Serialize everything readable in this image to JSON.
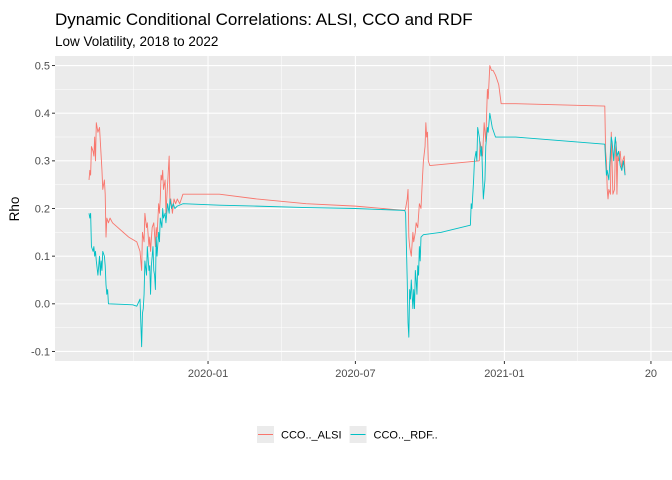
{
  "chart_data": {
    "type": "line",
    "title": "Dynamic Conditional Correlations: ALSI, CCO and RDF",
    "subtitle": "Low Volatility, 2018 to 2022",
    "xlabel": "",
    "ylabel": "Rho",
    "x_ticks": [
      "2020-01",
      "2020-07",
      "2021-01",
      "20"
    ],
    "y_ticks": [
      "-0.1",
      "0.0",
      "0.1",
      "0.2",
      "0.3",
      "0.4",
      "0.5"
    ],
    "ylim": [
      -0.12,
      0.52
    ],
    "legend_position": "bottom",
    "grid": true,
    "panel_background": "#ebebeb",
    "series": [
      {
        "name": "CCO.._ALSI",
        "color": "#f8766d",
        "points": [
          [
            "2019-08-07",
            0.26
          ],
          [
            "2019-08-08",
            0.28
          ],
          [
            "2019-08-09",
            0.27
          ],
          [
            "2019-08-10",
            0.33
          ],
          [
            "2019-08-12",
            0.32
          ],
          [
            "2019-08-13",
            0.31
          ],
          [
            "2019-08-14",
            0.35
          ],
          [
            "2019-08-15",
            0.3
          ],
          [
            "2019-08-16",
            0.38
          ],
          [
            "2019-08-18",
            0.36
          ],
          [
            "2019-08-20",
            0.37
          ],
          [
            "2019-08-21",
            0.34
          ],
          [
            "2019-08-23",
            0.28
          ],
          [
            "2019-08-24",
            0.24
          ],
          [
            "2019-08-26",
            0.26
          ],
          [
            "2019-08-27",
            0.23
          ],
          [
            "2019-08-28",
            0.14
          ],
          [
            "2019-08-29",
            0.18
          ],
          [
            "2019-08-31",
            0.17
          ],
          [
            "2019-09-02",
            0.18
          ],
          [
            "2019-09-05",
            0.17
          ],
          [
            "2019-09-25",
            0.14
          ],
          [
            "2019-10-05",
            0.13
          ],
          [
            "2019-10-09",
            0.11
          ],
          [
            "2019-10-11",
            0.07
          ],
          [
            "2019-10-12",
            0.15
          ],
          [
            "2019-10-14",
            0.13
          ],
          [
            "2019-10-15",
            0.19
          ],
          [
            "2019-10-17",
            0.16
          ],
          [
            "2019-10-18",
            0.17
          ],
          [
            "2019-10-20",
            0.12
          ],
          [
            "2019-10-21",
            0.14
          ],
          [
            "2019-10-22",
            0.11
          ],
          [
            "2019-10-24",
            0.16
          ],
          [
            "2019-10-26",
            0.17
          ],
          [
            "2019-10-28",
            0.12
          ],
          [
            "2019-10-29",
            0.16
          ],
          [
            "2019-10-30",
            0.14
          ],
          [
            "2019-11-01",
            0.21
          ],
          [
            "2019-11-02",
            0.19
          ],
          [
            "2019-11-03",
            0.22
          ],
          [
            "2019-11-04",
            0.27
          ],
          [
            "2019-11-05",
            0.26
          ],
          [
            "2019-11-06",
            0.28
          ],
          [
            "2019-11-07",
            0.24
          ],
          [
            "2019-11-09",
            0.26
          ],
          [
            "2019-11-10",
            0.19
          ],
          [
            "2019-11-11",
            0.22
          ],
          [
            "2019-11-12",
            0.25
          ],
          [
            "2019-11-14",
            0.31
          ],
          [
            "2019-11-15",
            0.21
          ],
          [
            "2019-11-16",
            0.22
          ],
          [
            "2019-11-18",
            0.19
          ],
          [
            "2019-11-20",
            0.22
          ],
          [
            "2019-11-22",
            0.21
          ],
          [
            "2019-11-24",
            0.22
          ],
          [
            "2019-11-27",
            0.21
          ],
          [
            "2019-12-01",
            0.23
          ],
          [
            "2020-01-15",
            0.23
          ],
          [
            "2020-03-01",
            0.22
          ],
          [
            "2020-05-01",
            0.21
          ],
          [
            "2020-07-01",
            0.205
          ],
          [
            "2020-08-31",
            0.196
          ],
          [
            "2020-09-01",
            0.2
          ],
          [
            "2020-09-03",
            0.22
          ],
          [
            "2020-09-04",
            0.24
          ],
          [
            "2020-09-05",
            0.14
          ],
          [
            "2020-09-06",
            0.12
          ],
          [
            "2020-09-08",
            0.1
          ],
          [
            "2020-09-10",
            0.15
          ],
          [
            "2020-09-11",
            0.13
          ],
          [
            "2020-09-13",
            0.15
          ],
          [
            "2020-09-14",
            0.17
          ],
          [
            "2020-09-16",
            0.16
          ],
          [
            "2020-09-18",
            0.21
          ],
          [
            "2020-09-20",
            0.2
          ],
          [
            "2020-09-22",
            0.27
          ],
          [
            "2020-09-23",
            0.3
          ],
          [
            "2020-09-25",
            0.33
          ],
          [
            "2020-09-26",
            0.38
          ],
          [
            "2020-09-27",
            0.35
          ],
          [
            "2020-09-28",
            0.36
          ],
          [
            "2020-09-29",
            0.3
          ],
          [
            "2020-10-01",
            0.29
          ],
          [
            "2020-11-01",
            0.295
          ],
          [
            "2020-12-01",
            0.3
          ],
          [
            "2020-12-02",
            0.34
          ],
          [
            "2020-12-05",
            0.31
          ],
          [
            "2020-12-07",
            0.38
          ],
          [
            "2020-12-09",
            0.34
          ],
          [
            "2020-12-11",
            0.45
          ],
          [
            "2020-12-12",
            0.43
          ],
          [
            "2020-12-14",
            0.5
          ],
          [
            "2020-12-16",
            0.49
          ],
          [
            "2020-12-18",
            0.49
          ],
          [
            "2020-12-21",
            0.48
          ],
          [
            "2020-12-23",
            0.47
          ],
          [
            "2020-12-25",
            0.46
          ],
          [
            "2020-12-28",
            0.42
          ],
          [
            "2021-01-15",
            0.42
          ],
          [
            "2021-05-05",
            0.415
          ],
          [
            "2021-05-06",
            0.32
          ],
          [
            "2021-05-07",
            0.3
          ],
          [
            "2021-05-08",
            0.24
          ],
          [
            "2021-05-09",
            0.22
          ],
          [
            "2021-05-10",
            0.24
          ],
          [
            "2021-05-12",
            0.23
          ],
          [
            "2021-05-13",
            0.36
          ],
          [
            "2021-05-15",
            0.23
          ],
          [
            "2021-05-17",
            0.24
          ],
          [
            "2021-05-18",
            0.32
          ],
          [
            "2021-05-19",
            0.34
          ],
          [
            "2021-05-20",
            0.23
          ],
          [
            "2021-05-21",
            0.31
          ],
          [
            "2021-05-22",
            0.3
          ],
          [
            "2021-05-24",
            0.32
          ],
          [
            "2021-05-26",
            0.28
          ],
          [
            "2021-05-27",
            0.3
          ],
          [
            "2021-05-29",
            0.31
          ],
          [
            "2021-05-30",
            0.27
          ]
        ]
      },
      {
        "name": "CCO.._RDF..",
        "color": "#00bfc4",
        "points": [
          [
            "2019-08-07",
            0.19
          ],
          [
            "2019-08-08",
            0.18
          ],
          [
            "2019-08-09",
            0.19
          ],
          [
            "2019-08-10",
            0.12
          ],
          [
            "2019-08-12",
            0.11
          ],
          [
            "2019-08-13",
            0.12
          ],
          [
            "2019-08-14",
            0.1
          ],
          [
            "2019-08-15",
            0.11
          ],
          [
            "2019-08-16",
            0.09
          ],
          [
            "2019-08-18",
            0.06
          ],
          [
            "2019-08-19",
            0.08
          ],
          [
            "2019-08-20",
            0.1
          ],
          [
            "2019-08-21",
            0.06
          ],
          [
            "2019-08-22",
            0.09
          ],
          [
            "2019-08-23",
            0.07
          ],
          [
            "2019-08-24",
            0.11
          ],
          [
            "2019-08-26",
            0.1
          ],
          [
            "2019-08-27",
            0.08
          ],
          [
            "2019-08-28",
            0.04
          ],
          [
            "2019-08-29",
            0.02
          ],
          [
            "2019-08-30",
            0.03
          ],
          [
            "2019-08-31",
            0.0
          ],
          [
            "2019-09-30",
            -0.002
          ],
          [
            "2019-10-05",
            -0.005
          ],
          [
            "2019-10-09",
            0.01
          ],
          [
            "2019-10-10",
            -0.04
          ],
          [
            "2019-10-11",
            -0.09
          ],
          [
            "2019-10-12",
            -0.02
          ],
          [
            "2019-10-13",
            -0.01
          ],
          [
            "2019-10-14",
            0.02
          ],
          [
            "2019-10-15",
            0.09
          ],
          [
            "2019-10-17",
            0.06
          ],
          [
            "2019-10-18",
            0.12
          ],
          [
            "2019-10-20",
            0.07
          ],
          [
            "2019-10-21",
            0.08
          ],
          [
            "2019-10-22",
            0.02
          ],
          [
            "2019-10-23",
            0.08
          ],
          [
            "2019-10-25",
            0.12
          ],
          [
            "2019-10-26",
            0.07
          ],
          [
            "2019-10-27",
            0.06
          ],
          [
            "2019-10-28",
            0.03
          ],
          [
            "2019-10-29",
            0.14
          ],
          [
            "2019-10-30",
            0.1
          ],
          [
            "2019-11-01",
            0.15
          ],
          [
            "2019-11-02",
            0.13
          ],
          [
            "2019-11-03",
            0.18
          ],
          [
            "2019-11-05",
            0.16
          ],
          [
            "2019-11-06",
            0.2
          ],
          [
            "2019-11-07",
            0.18
          ],
          [
            "2019-11-09",
            0.19
          ],
          [
            "2019-11-10",
            0.17
          ],
          [
            "2019-11-12",
            0.21
          ],
          [
            "2019-11-14",
            0.19
          ],
          [
            "2019-11-15",
            0.22
          ],
          [
            "2019-11-17",
            0.2
          ],
          [
            "2019-11-19",
            0.21
          ],
          [
            "2019-11-21",
            0.2
          ],
          [
            "2019-11-24",
            0.205
          ],
          [
            "2019-12-01",
            0.21
          ],
          [
            "2020-01-15",
            0.207
          ],
          [
            "2020-03-01",
            0.205
          ],
          [
            "2020-05-01",
            0.202
          ],
          [
            "2020-07-01",
            0.2
          ],
          [
            "2020-08-31",
            0.196
          ],
          [
            "2020-09-01",
            0.19
          ],
          [
            "2020-09-02",
            0.12
          ],
          [
            "2020-09-03",
            0.05
          ],
          [
            "2020-09-04",
            -0.04
          ],
          [
            "2020-09-05",
            -0.07
          ],
          [
            "2020-09-06",
            0.03
          ],
          [
            "2020-09-07",
            0.01
          ],
          [
            "2020-09-08",
            0.05
          ],
          [
            "2020-09-09",
            0.02
          ],
          [
            "2020-09-10",
            -0.01
          ],
          [
            "2020-09-11",
            0.03
          ],
          [
            "2020-09-12",
            -0.01
          ],
          [
            "2020-09-13",
            0.07
          ],
          [
            "2020-09-14",
            0.05
          ],
          [
            "2020-09-15",
            0.02
          ],
          [
            "2020-09-16",
            0.08
          ],
          [
            "2020-09-17",
            0.06
          ],
          [
            "2020-09-18",
            0.12
          ],
          [
            "2020-09-19",
            0.09
          ],
          [
            "2020-09-20",
            0.14
          ],
          [
            "2020-09-23",
            0.145
          ],
          [
            "2020-10-15",
            0.15
          ],
          [
            "2020-11-20",
            0.165
          ],
          [
            "2020-11-21",
            0.21
          ],
          [
            "2020-11-22",
            0.2
          ],
          [
            "2020-11-24",
            0.26
          ],
          [
            "2020-11-25",
            0.3
          ],
          [
            "2020-11-27",
            0.32
          ],
          [
            "2020-11-28",
            0.3
          ],
          [
            "2020-11-29",
            0.37
          ],
          [
            "2020-12-01",
            0.35
          ],
          [
            "2020-12-03",
            0.31
          ],
          [
            "2020-12-04",
            0.33
          ],
          [
            "2020-12-05",
            0.27
          ],
          [
            "2020-12-06",
            0.22
          ],
          [
            "2020-12-08",
            0.26
          ],
          [
            "2020-12-09",
            0.33
          ],
          [
            "2020-12-11",
            0.37
          ],
          [
            "2020-12-12",
            0.36
          ],
          [
            "2020-12-14",
            0.4
          ],
          [
            "2020-12-15",
            0.39
          ],
          [
            "2020-12-17",
            0.37
          ],
          [
            "2020-12-19",
            0.36
          ],
          [
            "2020-12-21",
            0.35
          ],
          [
            "2021-01-15",
            0.35
          ],
          [
            "2021-05-05",
            0.335
          ],
          [
            "2021-05-06",
            0.3
          ],
          [
            "2021-05-07",
            0.27
          ],
          [
            "2021-05-08",
            0.28
          ],
          [
            "2021-05-10",
            0.26
          ],
          [
            "2021-05-11",
            0.29
          ],
          [
            "2021-05-13",
            0.35
          ],
          [
            "2021-05-14",
            0.34
          ],
          [
            "2021-05-16",
            0.3
          ],
          [
            "2021-05-17",
            0.33
          ],
          [
            "2021-05-18",
            0.35
          ],
          [
            "2021-05-20",
            0.31
          ],
          [
            "2021-05-22",
            0.32
          ],
          [
            "2021-05-24",
            0.29
          ],
          [
            "2021-05-26",
            0.28
          ],
          [
            "2021-05-28",
            0.3
          ],
          [
            "2021-05-30",
            0.27
          ]
        ]
      }
    ]
  }
}
